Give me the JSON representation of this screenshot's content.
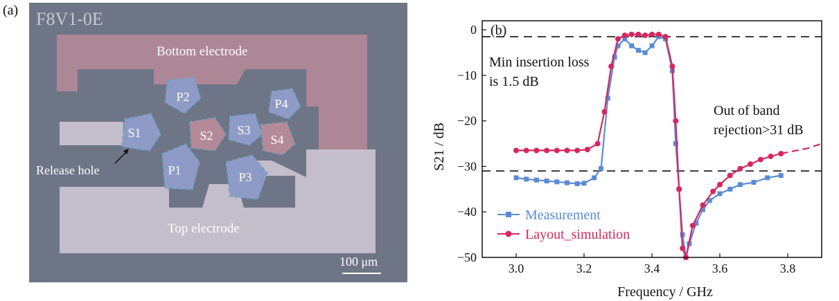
{
  "panel_a": {
    "letter": "(a)",
    "chip_id": "F8V1-0E",
    "labels": {
      "bottom_electrode": "Bottom electrode",
      "top_electrode": "Top electrode",
      "release_hole": "Release hole",
      "scale_bar": "100 μm"
    },
    "resonators": [
      "S1",
      "S2",
      "S3",
      "S4",
      "P1",
      "P2",
      "P3",
      "P4"
    ],
    "colors": {
      "background": "#6e7587",
      "bottom_electrode": "#b58a98",
      "top_electrode": "#c8c1ce",
      "resonator": "#8f9bc7",
      "release_hole": "#5fa4c4"
    }
  },
  "chart_data": {
    "type": "line",
    "panel_letter": "(b)",
    "title": "",
    "xlabel": "Frequency / GHz",
    "ylabel": "S21 / dB",
    "xlim": [
      2.9,
      3.9
    ],
    "ylim": [
      -50,
      2
    ],
    "xticks": [
      "3.0",
      "3.2",
      "3.4",
      "3.6",
      "3.8"
    ],
    "yticks": [
      "0",
      "−10",
      "−20",
      "−30",
      "−40",
      "−50"
    ],
    "legend_position": "bottom-left",
    "annotations": [
      "Min insertion loss",
      "is 1.5 dB",
      "Out of band",
      "rejection>31 dB"
    ],
    "reference_lines": [
      -1.5,
      -31
    ],
    "series": [
      {
        "name": "Measurement",
        "color": "#5b8bd4",
        "marker": "square",
        "x": [
          3.0,
          3.03,
          3.06,
          3.09,
          3.12,
          3.15,
          3.18,
          3.2,
          3.23,
          3.25,
          3.27,
          3.29,
          3.3,
          3.32,
          3.34,
          3.36,
          3.38,
          3.4,
          3.42,
          3.44,
          3.46,
          3.47,
          3.48,
          3.49,
          3.5,
          3.51,
          3.53,
          3.55,
          3.57,
          3.6,
          3.63,
          3.66,
          3.7,
          3.74,
          3.78
        ],
        "y": [
          -32.5,
          -32.8,
          -33.0,
          -33.2,
          -33.4,
          -33.6,
          -33.8,
          -33.7,
          -32.5,
          -30.5,
          -15,
          -6,
          -3.5,
          -2,
          -3.5,
          -4.5,
          -5,
          -3.5,
          -1.5,
          -2,
          -9,
          -25,
          -35,
          -45,
          -50,
          -47,
          -42.5,
          -39.5,
          -37.5,
          -36,
          -35,
          -34,
          -33.5,
          -32.5,
          -32
        ]
      },
      {
        "name": "Layout_simulation",
        "color": "#d7265e",
        "marker": "circle",
        "x": [
          3.0,
          3.03,
          3.06,
          3.09,
          3.12,
          3.15,
          3.18,
          3.21,
          3.24,
          3.26,
          3.28,
          3.3,
          3.32,
          3.34,
          3.36,
          3.38,
          3.4,
          3.42,
          3.44,
          3.46,
          3.47,
          3.48,
          3.49,
          3.5,
          3.52,
          3.55,
          3.58,
          3.6,
          3.63,
          3.66,
          3.69,
          3.72,
          3.75,
          3.78,
          3.82,
          3.86,
          3.9
        ],
        "y": [
          -26.5,
          -26.5,
          -26.5,
          -26.5,
          -26.5,
          -26.5,
          -26.5,
          -26.3,
          -25,
          -18,
          -8,
          -2,
          -1.2,
          -1,
          -1,
          -1.2,
          -1,
          -1,
          -1.5,
          -8,
          -20,
          -35,
          -48,
          -50,
          -43,
          -38.5,
          -35.5,
          -34,
          -32,
          -30.5,
          -29.5,
          -28.5,
          -27.8,
          -27.2,
          -26.6,
          -26,
          -25
        ]
      }
    ]
  }
}
